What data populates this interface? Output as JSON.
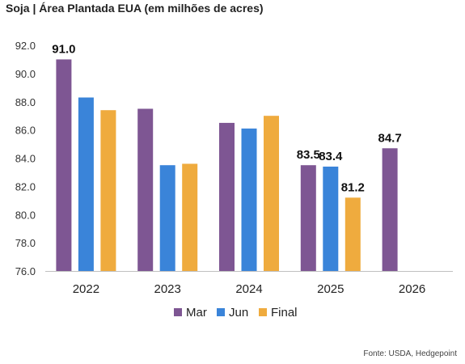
{
  "chart_data": {
    "type": "bar",
    "title": "Soja | Área Plantada EUA (em milhões de acres)",
    "xlabel": "",
    "ylabel": "",
    "ylim": [
      76.0,
      92.0
    ],
    "yticks": [
      "92.0",
      "90.0",
      "88.0",
      "86.0",
      "84.0",
      "82.0",
      "80.0",
      "78.0",
      "76.0"
    ],
    "categories": [
      "2022",
      "2023",
      "2024",
      "2025",
      "2026"
    ],
    "series": [
      {
        "name": "Mar",
        "color": "#7E5693",
        "values": [
          91.0,
          87.5,
          86.5,
          83.5,
          84.7
        ]
      },
      {
        "name": "Jun",
        "color": "#3A84D9",
        "values": [
          88.3,
          83.5,
          86.1,
          83.4,
          null
        ]
      },
      {
        "name": "Final",
        "color": "#EFAB3E",
        "values": [
          87.4,
          83.6,
          87.0,
          81.2,
          null
        ]
      }
    ],
    "data_labels": [
      {
        "series": 0,
        "category": 0,
        "text": "91.0"
      },
      {
        "series": 0,
        "category": 3,
        "text": "83.5"
      },
      {
        "series": 1,
        "category": 3,
        "text": "83.4"
      },
      {
        "series": 2,
        "category": 3,
        "text": "81.2"
      },
      {
        "series": 0,
        "category": 4,
        "text": "84.7"
      }
    ],
    "legend": {
      "position": "bottom"
    },
    "grid": false,
    "source": "Fonte: USDA, Hedgepoint"
  }
}
